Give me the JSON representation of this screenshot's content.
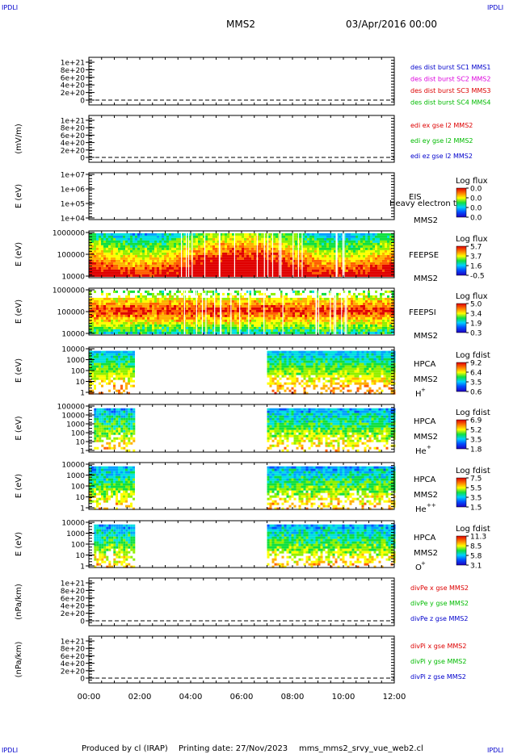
{
  "header": {
    "corner_left_top": "IPDLI",
    "corner_right_top": "IPDLI",
    "corner_left_bottom": "IPDLI",
    "corner_right_bottom": "IPDLI",
    "spacecraft": "MMS2",
    "date": "03/Apr/2016 00:00"
  },
  "footer": {
    "produced_by": "Produced by cl (IRAP)",
    "printing_date": "Printing date: 27/Nov/2023",
    "script_name": "mms_mms2_srvy_vue_web2.cl"
  },
  "time_axis": {
    "ticks": [
      "00:00",
      "02:00",
      "04:00",
      "06:00",
      "08:00",
      "10:00",
      "12:00"
    ],
    "range_hours": [
      0,
      12
    ]
  },
  "colors": {
    "des_sc1": "#0000cc",
    "des_sc2": "#dd00dd",
    "des_sc3": "#dd0000",
    "des_sc4": "#00bb00",
    "x_component": "#dd0000",
    "y_component": "#00bb00",
    "z_component": "#0000cc"
  },
  "chart_data": [
    {
      "type": "line",
      "panel": "des",
      "ylabel": "",
      "yticks": [
        "1e+21",
        "8e+20",
        "6e+20",
        "4e+20",
        "2e+20",
        "0"
      ],
      "series": [
        {
          "name": "des dist burst SC1 MMS1",
          "values": []
        },
        {
          "name": "des dist burst SC2 MMS2",
          "values": []
        },
        {
          "name": "des dist burst SC3 MMS3",
          "values": []
        },
        {
          "name": "des dist burst SC4 MMS4",
          "values": []
        }
      ]
    },
    {
      "type": "line",
      "panel": "edi",
      "ylabel": "(mV/m)",
      "yticks": [
        "1e+21",
        "8e+20",
        "6e+20",
        "4e+20",
        "2e+20",
        "0"
      ],
      "series": [
        {
          "name": "edi ex gse l2 MMS2",
          "values": []
        },
        {
          "name": "edi ey gse l2 MMS2",
          "values": []
        },
        {
          "name": "edi ez gse l2 MMS2",
          "values": []
        }
      ]
    },
    {
      "type": "heatmap",
      "panel": "eis",
      "ylabel": "E (eV)",
      "yscale": "log",
      "ylim": [
        10000,
        10000000
      ],
      "yticks": [
        "1e+07",
        "1e+06",
        "1e+05",
        "1e+04"
      ],
      "instrument": "EIS",
      "spacecraft": "MMS2",
      "overlay_text": "Heavy electron to",
      "colorbar_title": "Log flux",
      "colorbar_ticks": [
        "0.0",
        "0.0",
        "0.0",
        "0.0"
      ],
      "coverage": []
    },
    {
      "type": "heatmap",
      "panel": "feepse",
      "ylabel": "E (eV)",
      "yscale": "log",
      "ylim": [
        10000,
        1000000
      ],
      "yticks": [
        "1000000",
        "100000",
        "10000"
      ],
      "instrument": "FEEPSE",
      "spacecraft": "MMS2",
      "colorbar_title": "Log flux",
      "colorbar_ticks": [
        "5.7",
        "3.7",
        "1.6",
        "-0.5"
      ],
      "coverage": [
        [
          0.0,
          12.0
        ]
      ]
    },
    {
      "type": "heatmap",
      "panel": "feepsi",
      "ylabel": "E (eV)",
      "yscale": "log",
      "ylim": [
        10000,
        1000000
      ],
      "yticks": [
        "1000000",
        "100000",
        "10000"
      ],
      "instrument": "FEEPSI",
      "spacecraft": "MMS2",
      "colorbar_title": "Log flux",
      "colorbar_ticks": [
        "5.0",
        "3.4",
        "1.9",
        "0.3"
      ],
      "coverage": [
        [
          0.0,
          12.0
        ]
      ]
    },
    {
      "type": "heatmap",
      "panel": "hpca_h",
      "ylabel": "E (eV)",
      "yscale": "log",
      "yticks": [
        "10000",
        "1000",
        "100",
        "10",
        "1"
      ],
      "instrument": "HPCA",
      "spacecraft": "MMS2",
      "species": "H",
      "charge": "+",
      "colorbar_title": "Log fdist",
      "colorbar_ticks": [
        "9.2",
        "6.4",
        "3.5",
        "0.6"
      ],
      "coverage": [
        [
          0.0,
          1.8
        ],
        [
          7.0,
          12.0
        ]
      ]
    },
    {
      "type": "heatmap",
      "panel": "hpca_he",
      "ylabel": "E (eV)",
      "yscale": "log",
      "yticks": [
        "100000",
        "10000",
        "1000",
        "100",
        "10",
        "1"
      ],
      "instrument": "HPCA",
      "spacecraft": "MMS2",
      "species": "He",
      "charge": "+",
      "colorbar_title": "Log fdist",
      "colorbar_ticks": [
        "6.9",
        "5.2",
        "3.5",
        "1.8"
      ],
      "coverage": [
        [
          0.2,
          1.8
        ],
        [
          7.0,
          12.0
        ]
      ]
    },
    {
      "type": "heatmap",
      "panel": "hpca_hepp",
      "ylabel": "E (eV)",
      "yscale": "log",
      "yticks": [
        "10000",
        "1000",
        "100",
        "10",
        "1"
      ],
      "instrument": "HPCA",
      "spacecraft": "MMS2",
      "species": "He",
      "charge": "++",
      "colorbar_title": "Log fdist",
      "colorbar_ticks": [
        "7.5",
        "5.5",
        "3.5",
        "1.5"
      ],
      "coverage": [
        [
          0.0,
          1.8
        ],
        [
          7.0,
          12.0
        ]
      ]
    },
    {
      "type": "heatmap",
      "panel": "hpca_o",
      "ylabel": "E (eV)",
      "yscale": "log",
      "yticks": [
        "10000",
        "1000",
        "100",
        "10",
        "1"
      ],
      "instrument": "HPCA",
      "spacecraft": "MMS2",
      "species": "O",
      "charge": "+",
      "colorbar_title": "Log fdist",
      "colorbar_ticks": [
        "11.3",
        "8.5",
        "5.8",
        "3.1"
      ],
      "coverage": [
        [
          0.2,
          1.8
        ],
        [
          7.0,
          12.0
        ]
      ]
    },
    {
      "type": "line",
      "panel": "divpe",
      "ylabel": "(nPa/km)",
      "yticks": [
        "1e+21",
        "8e+20",
        "6e+20",
        "4e+20",
        "2e+20",
        "0"
      ],
      "series": [
        {
          "name": "divPe x gse MMS2",
          "values": []
        },
        {
          "name": "divPe y gse MMS2",
          "values": []
        },
        {
          "name": "divPe z gse MMS2",
          "values": []
        }
      ]
    },
    {
      "type": "line",
      "panel": "divpi",
      "ylabel": "(nPa/km)",
      "yticks": [
        "1e+21",
        "8e+20",
        "6e+20",
        "4e+20",
        "2e+20",
        "0"
      ],
      "series": [
        {
          "name": "divPi x gse MMS2",
          "values": []
        },
        {
          "name": "divPi y gse MMS2",
          "values": []
        },
        {
          "name": "divPi z gse MMS2",
          "values": []
        }
      ]
    }
  ]
}
